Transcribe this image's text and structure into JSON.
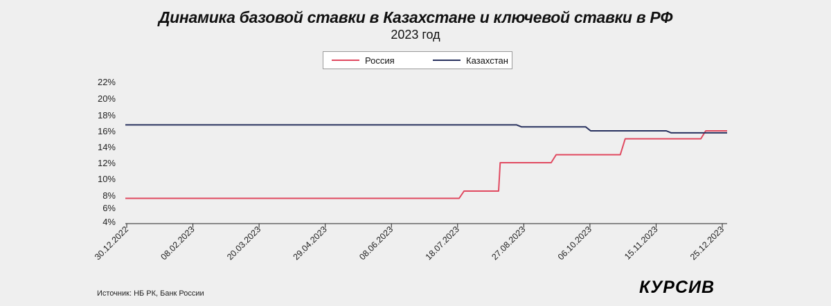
{
  "header": {
    "title": "Динамика базовой ставки в Казахстане и ключевой ставки в РФ",
    "subtitle": "2023 год"
  },
  "footer": {
    "source": "Источник: НБ РК, Банк России",
    "logo": "КУРСИВ"
  },
  "colors": {
    "background": "#efefef",
    "russia": "#e0485f",
    "kazakhstan": "#27305e"
  },
  "chart_data": {
    "type": "line",
    "title": "Динамика базовой ставки в Казахстане и ключевой ставки в РФ",
    "subtitle": "2023 год",
    "xlabel": "",
    "ylabel": "",
    "x_ticks": [
      "30.12.2022",
      "08.02.2023",
      "20.03.2023",
      "29.04.2023",
      "08.06.2023",
      "18.07.2023",
      "27.08.2023",
      "06.10.2023",
      "15.11.2023",
      "25.12.2023"
    ],
    "y_ticks": [
      "22%",
      "20%",
      "18%",
      "16%",
      "14%",
      "12%",
      "10%",
      "8%",
      "6%",
      "4%"
    ],
    "ylim": [
      4,
      22
    ],
    "xlim": [
      "2022-12-30",
      "2023-12-31"
    ],
    "grid": false,
    "legend_position": "top-center",
    "series": [
      {
        "name": "Россия",
        "color": "#e0485f",
        "points": [
          {
            "x": "2022-12-30",
            "y": 7.5
          },
          {
            "x": "2023-07-21",
            "y": 7.5
          },
          {
            "x": "2023-07-24",
            "y": 8.5
          },
          {
            "x": "2023-08-14",
            "y": 8.5
          },
          {
            "x": "2023-08-15",
            "y": 12
          },
          {
            "x": "2023-09-15",
            "y": 12
          },
          {
            "x": "2023-09-18",
            "y": 13
          },
          {
            "x": "2023-10-27",
            "y": 13
          },
          {
            "x": "2023-10-30",
            "y": 15
          },
          {
            "x": "2023-12-15",
            "y": 15
          },
          {
            "x": "2023-12-18",
            "y": 16
          },
          {
            "x": "2023-12-31",
            "y": 16
          }
        ]
      },
      {
        "name": "Казахстан",
        "color": "#27305e",
        "points": [
          {
            "x": "2022-12-30",
            "y": 16.75
          },
          {
            "x": "2023-08-25",
            "y": 16.75
          },
          {
            "x": "2023-08-28",
            "y": 16.5
          },
          {
            "x": "2023-10-06",
            "y": 16.5
          },
          {
            "x": "2023-10-09",
            "y": 16
          },
          {
            "x": "2023-11-24",
            "y": 16
          },
          {
            "x": "2023-11-27",
            "y": 15.75
          },
          {
            "x": "2023-12-31",
            "y": 15.75
          }
        ]
      }
    ]
  }
}
